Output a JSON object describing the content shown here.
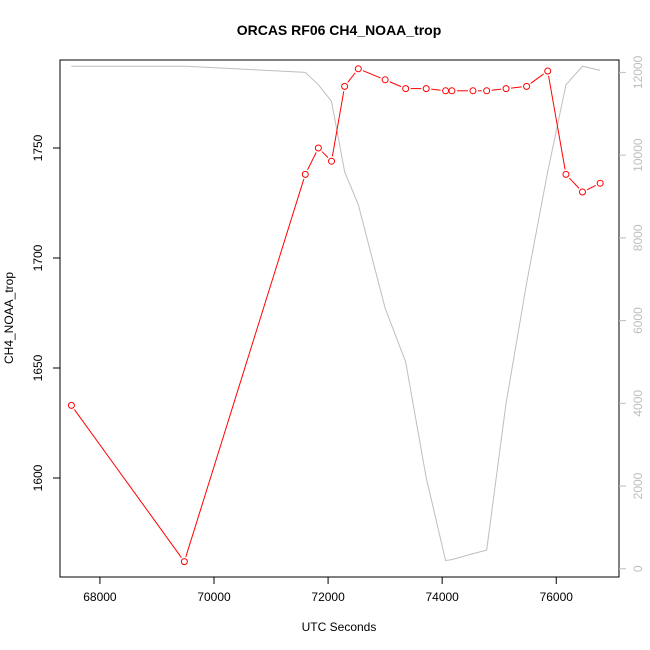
{
  "chart_data": {
    "type": "line",
    "title": "ORCAS RF06 CH4_NOAA_trop",
    "xlabel": "UTC Seconds",
    "ylabel": "CH4_NOAA_trop",
    "xlim": [
      67300,
      77100
    ],
    "ylim": [
      1555,
      1790
    ],
    "ylim_right": [
      -200,
      12300
    ],
    "x_ticks": [
      68000,
      70000,
      72000,
      74000,
      76000
    ],
    "y_ticks": [
      1600,
      1650,
      1700,
      1750
    ],
    "y_ticks_right": [
      0,
      2000,
      4000,
      6000,
      8000,
      10000,
      12000
    ],
    "grid": false,
    "series": [
      {
        "axis": "left",
        "color": "#ff0000",
        "marker": "open-circle",
        "x": [
          67500,
          69480,
          71600,
          71830,
          72060,
          72290,
          72530,
          73000,
          73360,
          73720,
          74060,
          74170,
          74540,
          74780,
          75120,
          75480,
          75850,
          76170,
          76460,
          76770
        ],
        "y": [
          1633,
          1562,
          1738,
          1750,
          1744,
          1778,
          1786,
          1781,
          1777,
          1777,
          1776,
          1776,
          1776,
          1776,
          1777,
          1778,
          1785,
          1738,
          1730,
          1734
        ]
      },
      {
        "axis": "right",
        "color": "#bebebe",
        "marker": "none",
        "x": [
          67500,
          69500,
          71600,
          71830,
          72060,
          72290,
          72530,
          73000,
          73360,
          73720,
          74060,
          74170,
          74500,
          74780,
          75120,
          75480,
          75850,
          76170,
          76460,
          76770
        ],
        "y": [
          12150,
          12150,
          12000,
          11700,
          11300,
          9600,
          8800,
          6300,
          5000,
          2200,
          200,
          220,
          350,
          450,
          4000,
          6900,
          9600,
          11700,
          12150,
          12050
        ]
      }
    ]
  }
}
